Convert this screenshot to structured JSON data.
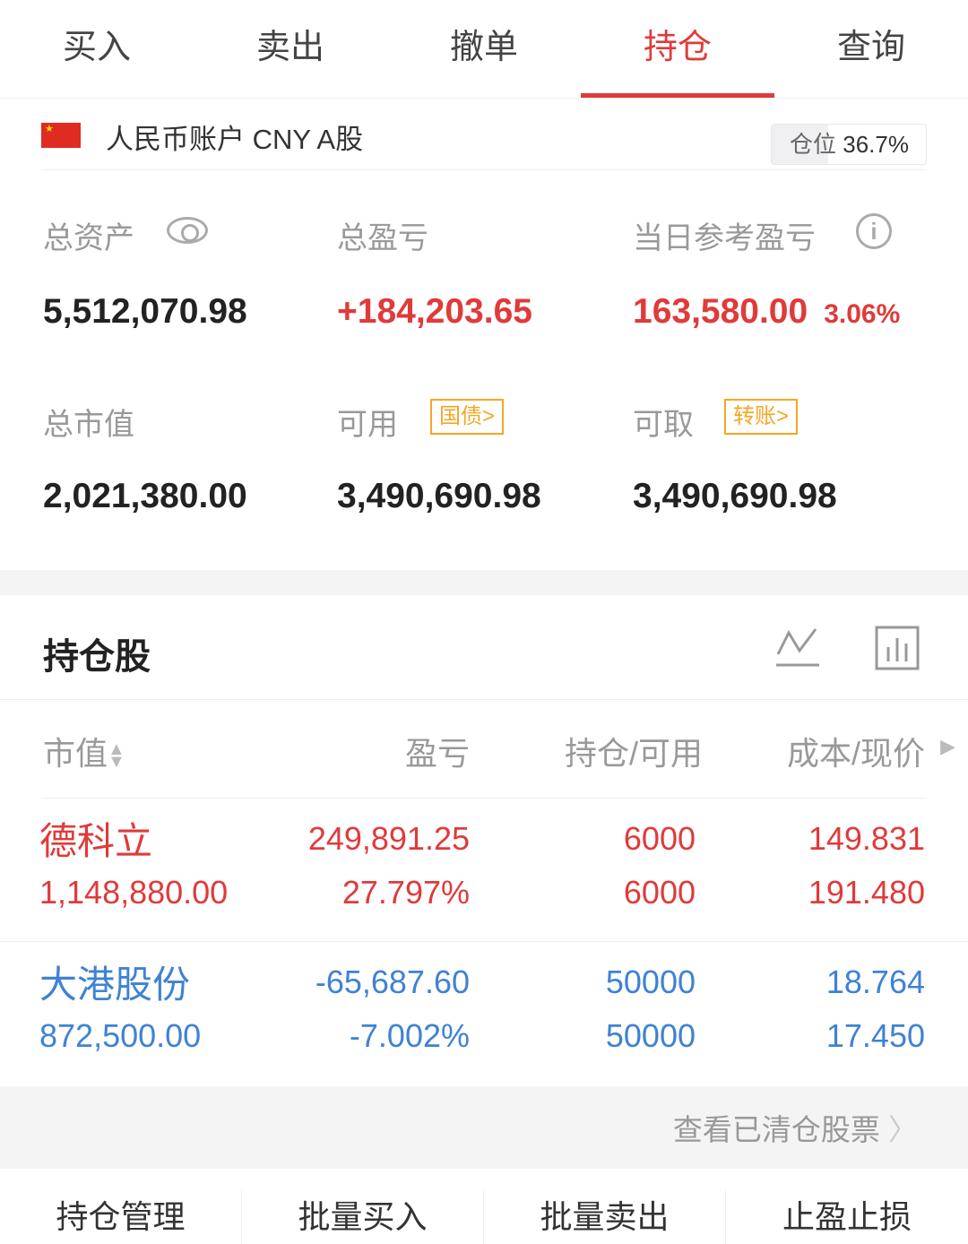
{
  "tabs": [
    {
      "label": "买入"
    },
    {
      "label": "卖出"
    },
    {
      "label": "撤单"
    },
    {
      "label": "持仓",
      "active": true
    },
    {
      "label": "查询"
    }
  ],
  "account": {
    "name": "人民币账户 CNY A股",
    "position_label": "仓位",
    "position_value": "36.7%",
    "position_fraction": 0.367
  },
  "summary": {
    "total_assets_label": "总资产",
    "total_assets": "5,512,070.98",
    "total_pnl_label": "总盈亏",
    "total_pnl": "+184,203.65",
    "daily_pnl_label": "当日参考盈亏",
    "daily_pnl": "163,580.00",
    "daily_pnl_pct": "3.06%",
    "market_value_label": "总市值",
    "market_value": "2,021,380.00",
    "available_label": "可用",
    "available_badge": "国债>",
    "available": "3,490,690.98",
    "withdrawable_label": "可取",
    "withdrawable_badge": "转账>",
    "withdrawable": "3,490,690.98"
  },
  "holdings": {
    "title": "持仓股",
    "columns": [
      "市值",
      "盈亏",
      "持仓/可用",
      "成本/现价"
    ],
    "rows": [
      {
        "name": "德科立",
        "market_value": "1,148,880.00",
        "pnl": "249,891.25",
        "pnl_pct": "27.797%",
        "position": "6000",
        "available": "6000",
        "cost": "149.831",
        "price": "191.480",
        "color": "#e03a3a"
      },
      {
        "name": "大港股份",
        "market_value": "872,500.00",
        "pnl": "-65,687.60",
        "pnl_pct": "-7.002%",
        "position": "50000",
        "available": "50000",
        "cost": "18.764",
        "price": "17.450",
        "color": "#3f82d4"
      }
    ],
    "cleared_link": "查看已清仓股票"
  },
  "bottom_actions": [
    {
      "label": "持仓管理"
    },
    {
      "label": "批量买入"
    },
    {
      "label": "批量卖出"
    },
    {
      "label": "止盈止损"
    }
  ]
}
